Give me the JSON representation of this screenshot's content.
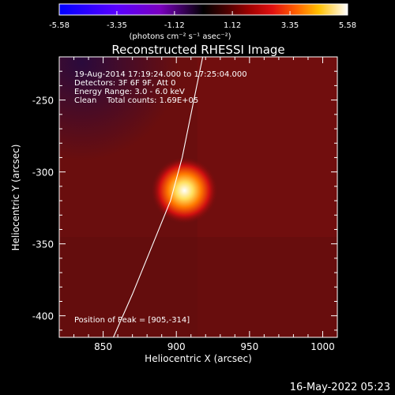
{
  "colorbar": {
    "ticks": [
      "-5.58",
      "-3.35",
      "-1.12",
      "1.12",
      "3.35",
      "5.58"
    ],
    "unit_label": "(photons cm⁻² s⁻¹ asec⁻²)",
    "range": [
      -5.58,
      5.58
    ],
    "colormap": "RHESSI signed: blue/purple negative, black zero, red-orange-yellow-white positive"
  },
  "chart_data": {
    "type": "heatmap",
    "title": "Reconstructed RHESSI Image",
    "xlabel": "Heliocentric X (arcsec)",
    "ylabel": "Heliocentric Y (arcsec)",
    "xlim": [
      820,
      1010
    ],
    "ylim": [
      -415,
      -220
    ],
    "x_ticks": [
      "850",
      "900",
      "950",
      "1000"
    ],
    "y_ticks": [
      "-250",
      "-300",
      "-350",
      "-400"
    ],
    "x_tick_values": [
      850,
      900,
      950,
      1000
    ],
    "y_tick_values": [
      -250,
      -300,
      -350,
      -400
    ],
    "peak": {
      "x": 905,
      "y": -314
    },
    "limb_curve": {
      "description": "solar limb",
      "points": [
        [
          918,
          -220
        ],
        [
          912,
          -250
        ],
        [
          904,
          -290
        ],
        [
          896,
          -320
        ],
        [
          884,
          -350
        ],
        [
          870,
          -385
        ],
        [
          857,
          -415
        ]
      ]
    },
    "annotations": [
      "19-Aug-2014 17:19:24.000 to 17:25:04.000",
      "Detectors: 3F 6F 9F, Att 0",
      "Energy Range: 3.0 - 6.0 keV",
      "Clean    Total counts: 1.69E+05",
      "Position of Peak = [905,-314]"
    ]
  },
  "footer": {
    "date": "16-May-2022 05:23"
  }
}
